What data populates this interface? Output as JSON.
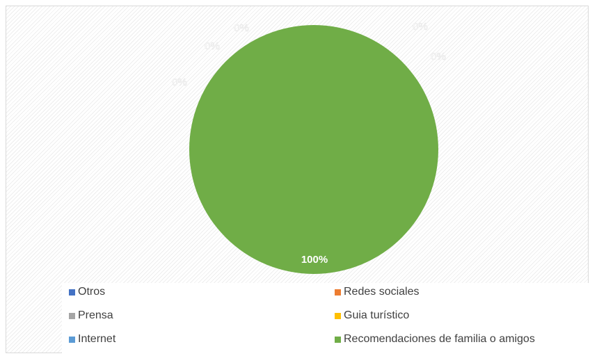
{
  "chart_data": {
    "type": "pie",
    "title": "",
    "categories": [
      "Otros",
      "Redes sociales",
      "Prensa",
      "Guia turístico",
      "Internet",
      "Recomendaciones de familia o amigos"
    ],
    "values": [
      0,
      0,
      0,
      0,
      0,
      100
    ],
    "labels": [
      "0%",
      "0%",
      "0%",
      "0%",
      "0%",
      "100%"
    ],
    "colors": [
      "#4472C4",
      "#ED7D31",
      "#A5A5A5",
      "#FFC000",
      "#5B9BD5",
      "#70AD47"
    ],
    "legend_position": "bottom"
  }
}
